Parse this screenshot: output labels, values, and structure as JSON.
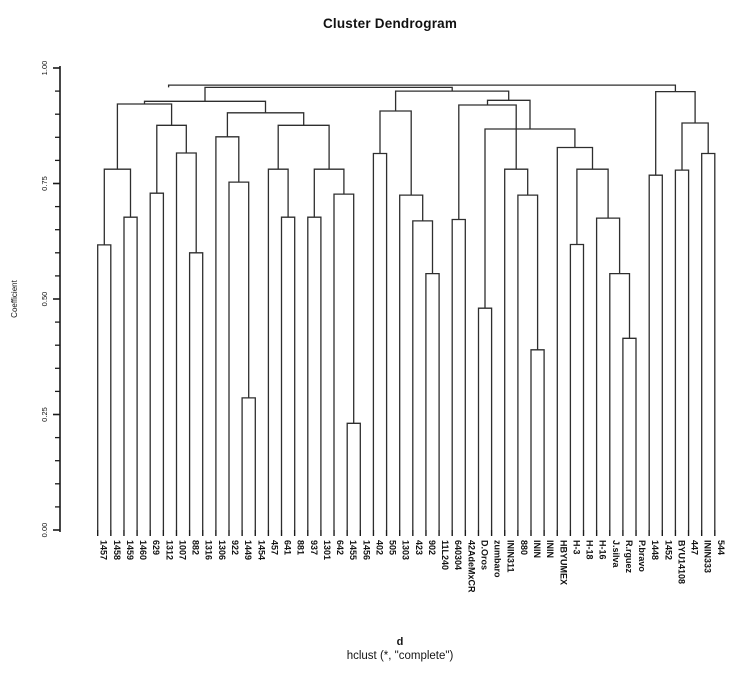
{
  "title": "Cluster Dendrogram",
  "caption": {
    "line1": "d",
    "line2": "hclust (*, \"complete\")"
  },
  "colors": {
    "line": "#2e2e2e",
    "axis": "#1a1a1a",
    "text": "#111111",
    "background": "#ffffff"
  },
  "y_axis": {
    "label": "Coefficient",
    "tick_labels": [
      "1.00",
      "0.75",
      "0.50",
      "0.25",
      "0.00"
    ],
    "tick_values": [
      1.0,
      0.75,
      0.5,
      0.25,
      0.0
    ],
    "minor_tick_step": 0.05,
    "range": [
      0.0,
      1.0
    ]
  },
  "chart_data": {
    "type": "dendrogram",
    "method_note": "hclust (*, \"complete\")",
    "ylabel": "Coefficient",
    "ylim": [
      0,
      1
    ],
    "leaves": [
      "1457",
      "1458",
      "1459",
      "1460",
      "629",
      "1312",
      "1007",
      "882",
      "1316",
      "1306",
      "922",
      "1449",
      "1454",
      "457",
      "641",
      "881",
      "937",
      "1301",
      "642",
      "1455",
      "1456",
      "402",
      "505",
      "1303",
      "423",
      "902",
      "11L240",
      "640304",
      "42AdeMxCR",
      "D.Oros",
      "zumbaro",
      "ININ311",
      "880",
      "ININ",
      "ININ",
      "HBYUMEX",
      "H-3",
      "H-18",
      "H-16",
      "J.silva",
      "R.rguez",
      "P.bravo",
      "1448",
      "1452",
      "BYU14108",
      "447",
      "ININ333",
      "544"
    ],
    "merges_note": "R hclust convention: negative = leaf index (1-based), positive = earlier merge row; third value = merge height (coefficient)",
    "merges": [
      [
        -1,
        -2,
        0.617
      ],
      [
        -3,
        -4,
        0.677
      ],
      [
        1,
        2,
        0.781
      ],
      [
        -5,
        -6,
        0.729
      ],
      [
        -8,
        -9,
        0.6
      ],
      [
        -7,
        5,
        0.816
      ],
      [
        4,
        6,
        0.876
      ],
      [
        3,
        7,
        0.922
      ],
      [
        -12,
        -13,
        0.286
      ],
      [
        -11,
        9,
        0.753
      ],
      [
        -10,
        10,
        0.851
      ],
      [
        -15,
        -16,
        0.677
      ],
      [
        -14,
        12,
        0.781
      ],
      [
        -17,
        -18,
        0.677
      ],
      [
        -20,
        -21,
        0.231
      ],
      [
        -19,
        15,
        0.727
      ],
      [
        14,
        16,
        0.781
      ],
      [
        13,
        17,
        0.876
      ],
      [
        11,
        18,
        0.903
      ],
      [
        8,
        19,
        0.928
      ],
      [
        -22,
        -23,
        0.815
      ],
      [
        -26,
        -27,
        0.555
      ],
      [
        -25,
        22,
        0.669
      ],
      [
        -24,
        23,
        0.725
      ],
      [
        21,
        24,
        0.907
      ],
      [
        -28,
        -29,
        0.672
      ],
      [
        -34,
        -35,
        0.39
      ],
      [
        -33,
        27,
        0.725
      ],
      [
        -32,
        28,
        0.781
      ],
      [
        26,
        29,
        0.92
      ],
      [
        -30,
        -31,
        0.48
      ],
      [
        -37,
        -38,
        0.618
      ],
      [
        -41,
        -42,
        0.415
      ],
      [
        -40,
        33,
        0.555
      ],
      [
        -39,
        34,
        0.675
      ],
      [
        32,
        35,
        0.781
      ],
      [
        -36,
        36,
        0.828
      ],
      [
        31,
        37,
        0.868
      ],
      [
        30,
        38,
        0.93
      ],
      [
        25,
        39,
        0.95
      ],
      [
        20,
        40,
        0.958
      ],
      [
        -43,
        -44,
        0.768
      ],
      [
        -45,
        -46,
        0.779
      ],
      [
        -47,
        -48,
        0.815
      ],
      [
        43,
        44,
        0.881
      ],
      [
        42,
        45,
        0.949
      ],
      [
        41,
        46,
        0.963
      ]
    ],
    "center_overrides_leaf_units": {
      "41": 6.4
    }
  }
}
